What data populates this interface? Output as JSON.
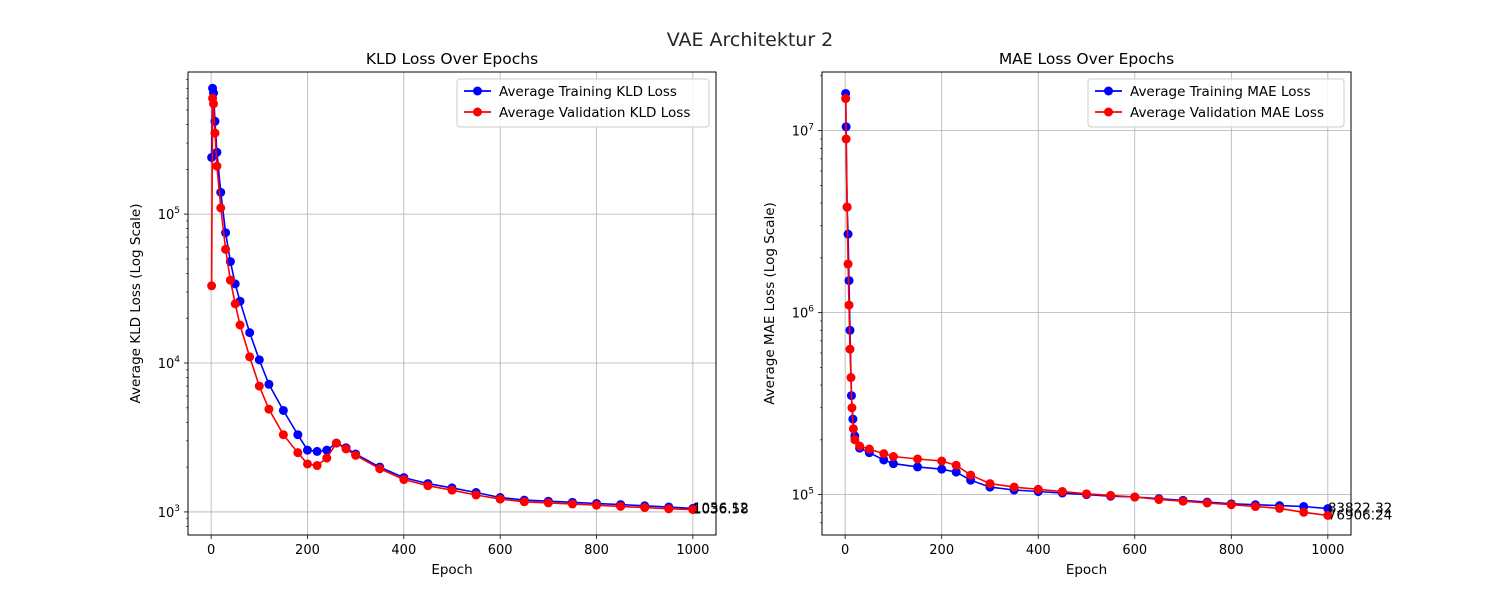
{
  "figure": {
    "title": "VAE Architektur 2"
  },
  "colors": {
    "training": "#0000ff",
    "validation": "#ff0000",
    "grid": "#b0b0b0",
    "axis": "#000000"
  },
  "chart_data": [
    {
      "type": "line",
      "title": "KLD Loss Over Epochs",
      "xlabel": "Epoch",
      "ylabel": "Average KLD Loss (Log Scale)",
      "yscale": "log",
      "xlim": [
        -48,
        1048
      ],
      "ylim": [
        700,
        900000
      ],
      "grid": true,
      "legend": "upper right",
      "x_ticks": [
        0,
        200,
        400,
        600,
        800,
        1000
      ],
      "x_tick_labels": [
        "0",
        "200",
        "400",
        "600",
        "800",
        "1000"
      ],
      "y_ticks": [
        1000,
        10000,
        100000
      ],
      "y_tick_labels": [
        {
          "base": "10",
          "exp": "3"
        },
        {
          "base": "10",
          "exp": "4"
        },
        {
          "base": "10",
          "exp": "5"
        }
      ],
      "series": [
        {
          "name": "Average Training KLD Loss",
          "color": "#0000ff",
          "points": [
            [
              1,
              240000
            ],
            [
              3,
              700000
            ],
            [
              5,
              650000
            ],
            [
              8,
              420000
            ],
            [
              12,
              260000
            ],
            [
              20,
              140000
            ],
            [
              30,
              75000
            ],
            [
              40,
              48000
            ],
            [
              50,
              34000
            ],
            [
              60,
              26000
            ],
            [
              80,
              16000
            ],
            [
              100,
              10500
            ],
            [
              120,
              7200
            ],
            [
              150,
              4800
            ],
            [
              180,
              3300
            ],
            [
              200,
              2600
            ],
            [
              220,
              2550
            ],
            [
              240,
              2600
            ],
            [
              260,
              2900
            ],
            [
              280,
              2700
            ],
            [
              300,
              2450
            ],
            [
              350,
              2000
            ],
            [
              400,
              1700
            ],
            [
              450,
              1550
            ],
            [
              500,
              1450
            ],
            [
              550,
              1350
            ],
            [
              600,
              1250
            ],
            [
              650,
              1200
            ],
            [
              700,
              1180
            ],
            [
              750,
              1160
            ],
            [
              800,
              1140
            ],
            [
              850,
              1120
            ],
            [
              900,
              1100
            ],
            [
              950,
              1080
            ],
            [
              1000,
              1056.12
            ]
          ]
        },
        {
          "name": "Average Validation KLD Loss",
          "color": "#ff0000",
          "points": [
            [
              1,
              33000
            ],
            [
              3,
              600000
            ],
            [
              5,
              550000
            ],
            [
              8,
              350000
            ],
            [
              12,
              210000
            ],
            [
              20,
              110000
            ],
            [
              30,
              58000
            ],
            [
              40,
              36000
            ],
            [
              50,
              25000
            ],
            [
              60,
              18000
            ],
            [
              80,
              11000
            ],
            [
              100,
              7000
            ],
            [
              120,
              4900
            ],
            [
              150,
              3300
            ],
            [
              180,
              2500
            ],
            [
              200,
              2100
            ],
            [
              220,
              2050
            ],
            [
              240,
              2300
            ],
            [
              260,
              2900
            ],
            [
              280,
              2650
            ],
            [
              300,
              2400
            ],
            [
              350,
              1950
            ],
            [
              400,
              1650
            ],
            [
              450,
              1500
            ],
            [
              500,
              1400
            ],
            [
              550,
              1300
            ],
            [
              600,
              1220
            ],
            [
              650,
              1170
            ],
            [
              700,
              1150
            ],
            [
              750,
              1130
            ],
            [
              800,
              1110
            ],
            [
              850,
              1090
            ],
            [
              900,
              1070
            ],
            [
              950,
              1050
            ],
            [
              1000,
              1036.58
            ]
          ]
        }
      ],
      "annotations": [
        {
          "x": 1000,
          "y": 1056.12,
          "text": "1056.12"
        },
        {
          "x": 1000,
          "y": 1036.58,
          "text": "1036.58"
        }
      ]
    },
    {
      "type": "line",
      "title": "MAE Loss Over Epochs",
      "xlabel": "Epoch",
      "ylabel": "Average MAE Loss (Log Scale)",
      "yscale": "log",
      "xlim": [
        -48,
        1048
      ],
      "ylim": [
        60000,
        21000000
      ],
      "grid": true,
      "legend": "upper right",
      "x_ticks": [
        0,
        200,
        400,
        600,
        800,
        1000
      ],
      "x_tick_labels": [
        "0",
        "200",
        "400",
        "600",
        "800",
        "1000"
      ],
      "y_ticks": [
        100000,
        1000000,
        10000000
      ],
      "y_tick_labels": [
        {
          "base": "10",
          "exp": "5"
        },
        {
          "base": "10",
          "exp": "6"
        },
        {
          "base": "10",
          "exp": "7"
        }
      ],
      "series": [
        {
          "name": "Average Training MAE Loss",
          "color": "#0000ff",
          "points": [
            [
              1,
              16000000
            ],
            [
              2,
              10500000
            ],
            [
              4,
              3800000
            ],
            [
              6,
              2700000
            ],
            [
              8,
              1500000
            ],
            [
              10,
              800000
            ],
            [
              13,
              350000
            ],
            [
              16,
              260000
            ],
            [
              20,
              210000
            ],
            [
              30,
              180000
            ],
            [
              50,
              170000
            ],
            [
              80,
              155000
            ],
            [
              100,
              148000
            ],
            [
              150,
              142000
            ],
            [
              200,
              138000
            ],
            [
              230,
              133000
            ],
            [
              260,
              120000
            ],
            [
              300,
              110000
            ],
            [
              350,
              106000
            ],
            [
              400,
              104000
            ],
            [
              450,
              102000
            ],
            [
              500,
              100000
            ],
            [
              550,
              98000
            ],
            [
              600,
              97000
            ],
            [
              650,
              95000
            ],
            [
              700,
              93000
            ],
            [
              750,
              91000
            ],
            [
              800,
              89000
            ],
            [
              850,
              88000
            ],
            [
              900,
              87000
            ],
            [
              950,
              86000
            ],
            [
              1000,
              83822.32
            ]
          ]
        },
        {
          "name": "Average Validation MAE Loss",
          "color": "#ff0000",
          "points": [
            [
              1,
              15000000
            ],
            [
              2,
              9000000
            ],
            [
              4,
              3800000
            ],
            [
              6,
              1850000
            ],
            [
              8,
              1100000
            ],
            [
              10,
              630000
            ],
            [
              12,
              440000
            ],
            [
              14,
              300000
            ],
            [
              17,
              230000
            ],
            [
              20,
              200000
            ],
            [
              30,
              185000
            ],
            [
              50,
              178000
            ],
            [
              80,
              168000
            ],
            [
              100,
              162000
            ],
            [
              150,
              157000
            ],
            [
              200,
              153000
            ],
            [
              230,
              145000
            ],
            [
              260,
              128000
            ],
            [
              300,
              115000
            ],
            [
              350,
              110000
            ],
            [
              400,
              107000
            ],
            [
              450,
              104000
            ],
            [
              500,
              101000
            ],
            [
              550,
              99000
            ],
            [
              600,
              97000
            ],
            [
              650,
              94000
            ],
            [
              700,
              92000
            ],
            [
              750,
              90000
            ],
            [
              800,
              88000
            ],
            [
              850,
              86000
            ],
            [
              900,
              84000
            ],
            [
              950,
              80000
            ],
            [
              1000,
              76906.24
            ]
          ]
        }
      ],
      "annotations": [
        {
          "x": 1000,
          "y": 83822.32,
          "text": "83822.32"
        },
        {
          "x": 1000,
          "y": 76906.24,
          "text": "76906.24"
        }
      ]
    }
  ]
}
